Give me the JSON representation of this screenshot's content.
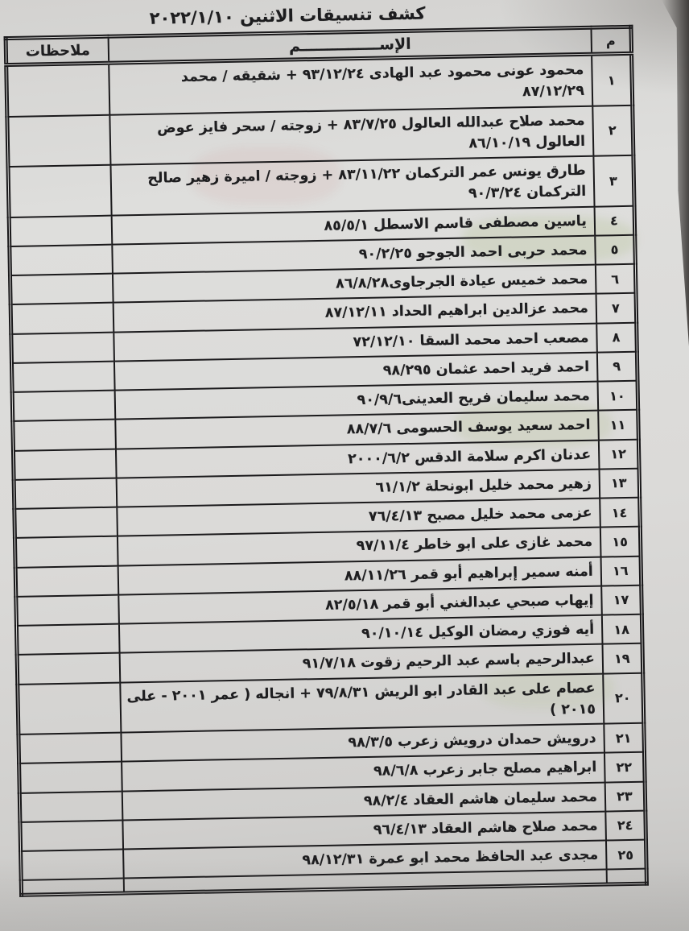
{
  "page": {
    "title": "كشف تنسيقات الاثنين ٢٠٢٢/١/١٠"
  },
  "colors": {
    "ink": "#1d1d1f",
    "paper": "#d9d8d6",
    "border": "#19181a",
    "bleed_green": "#96ac5c",
    "bleed_pink": "#cd7d7d"
  },
  "table": {
    "headers": {
      "num": "م",
      "name": "الإســـــــــــــــم",
      "notes": "ملاحظات"
    },
    "rows": [
      {
        "num": "١",
        "name": "محمود عونى محمود عبد الهادى ٩٣/١٢/٢٤ + شقيقه / محمد ٨٧/١٢/٢٩",
        "notes": ""
      },
      {
        "num": "٢",
        "name": "محمد صلاح عبدالله العالول ٨٣/٧/٢٥ + زوجته / سحر فايز عوض العالول ٨٦/١٠/١٩",
        "notes": ""
      },
      {
        "num": "٣",
        "name": "طارق يونس عمر التركمان ٨٣/١١/٢٢ + زوجته / اميرة زهير صالح التركمان ٩٠/٣/٢٤",
        "notes": ""
      },
      {
        "num": "٤",
        "name": "ياسين مصطفى قاسم الاسطل ٨٥/٥/١",
        "notes": ""
      },
      {
        "num": "٥",
        "name": "محمد حربى احمد الجوجو ٩٠/٢/٢٥",
        "notes": ""
      },
      {
        "num": "٦",
        "name": "محمد خميس عيادة الجرجاوى٨٦/٨/٢٨",
        "notes": ""
      },
      {
        "num": "٧",
        "name": "محمد عزالدين ابراهيم الحداد ٨٧/١٢/١١",
        "notes": ""
      },
      {
        "num": "٨",
        "name": "مصعب احمد محمد السقا ٧٢/١٢/١٠",
        "notes": ""
      },
      {
        "num": "٩",
        "name": "احمد فريد احمد عثمان ٩٨/٢٩٥",
        "notes": ""
      },
      {
        "num": "١٠",
        "name": "محمد سليمان فريح العدينى٩٠/٩/٦",
        "notes": ""
      },
      {
        "num": "١١",
        "name": "احمد سعيد يوسف الحسومى ٨٨/٧/٦",
        "notes": ""
      },
      {
        "num": "١٢",
        "name": "عدنان اكرم سلامة الدقس ٢٠٠٠/٦/٢",
        "notes": ""
      },
      {
        "num": "١٣",
        "name": "زهير محمد خليل ابونحلة ٦١/١/٢",
        "notes": ""
      },
      {
        "num": "١٤",
        "name": "عزمى محمد خليل مصبح ٧٦/٤/١٣",
        "notes": ""
      },
      {
        "num": "١٥",
        "name": "محمد غازى على ابو خاطر ٩٧/١١/٤",
        "notes": ""
      },
      {
        "num": "١٦",
        "name": "أمنه سمير إبراهيم أبو قمر ٨٨/١١/٢٦",
        "notes": ""
      },
      {
        "num": "١٧",
        "name": "إيهاب صبحي عبدالغني أبو قمر ٨٢/٥/١٨",
        "notes": ""
      },
      {
        "num": "١٨",
        "name": "أيه فوزي رمضان الوكيل ٩٠/١٠/١٤",
        "notes": ""
      },
      {
        "num": "١٩",
        "name": "عبدالرحيم باسم عبد الرحيم زقوت ٩١/٧/١٨",
        "notes": ""
      },
      {
        "num": "٢٠",
        "name": "عصام على عبد القادر ابو الريش ٧٩/٨/٣١ + انجاله ( عمر ٢٠٠١ - على ٢٠١٥ )",
        "notes": ""
      },
      {
        "num": "٢١",
        "name": "درويش حمدان درويش زعرب ٩٨/٣/٥",
        "notes": ""
      },
      {
        "num": "٢٢",
        "name": "ابراهيم مصلح جابر زعرب ٩٨/٦/٨",
        "notes": ""
      },
      {
        "num": "٢٣",
        "name": "محمد سليمان هاشم العقاد ٩٨/٢/٤",
        "notes": ""
      },
      {
        "num": "٢٤",
        "name": "محمد صلاح هاشم العقاد ٩٦/٤/١٣",
        "notes": ""
      },
      {
        "num": "٢٥",
        "name": "مجدى عبد الحافظ محمد ابو عمرة ٩٨/١٢/٣١",
        "notes": ""
      }
    ],
    "trailing_empty_row": true
  }
}
